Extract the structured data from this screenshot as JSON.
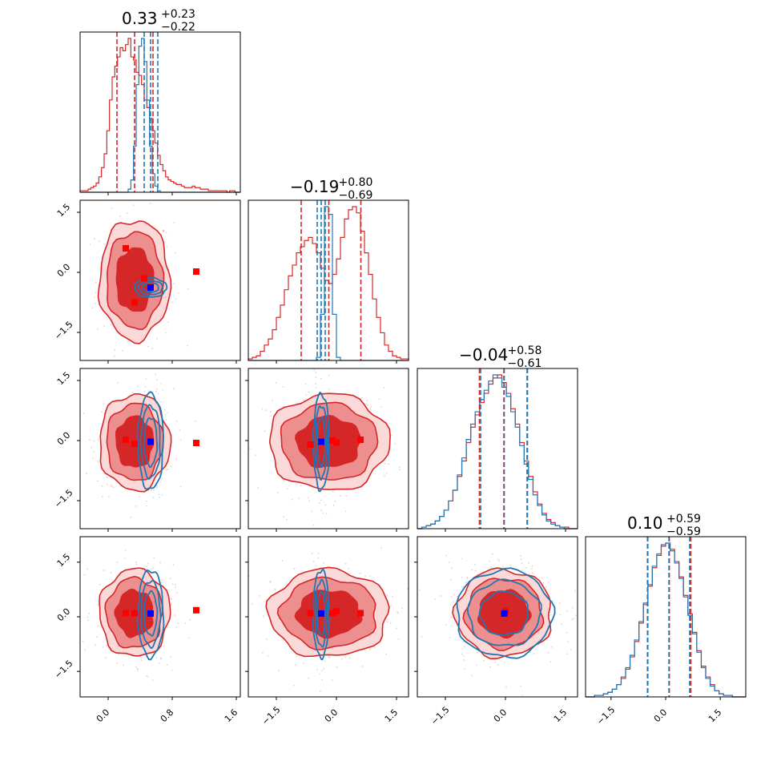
{
  "colors": {
    "primary": "#d62728",
    "secondary": "#1f77b4",
    "max_marker_primary": "#ff0000",
    "max_marker_secondary": "#0000ff"
  },
  "chart_data": {
    "type": "corner",
    "n_params": 4,
    "titles": [
      {
        "median": "0.33",
        "plus": "+0.23",
        "minus": "−0.22"
      },
      {
        "median": "−0.19",
        "plus": "+0.80",
        "minus": "−0.69"
      },
      {
        "median": "−0.04",
        "plus": "+0.58",
        "minus": "−0.61"
      },
      {
        "median": "0.10",
        "plus": "+0.59",
        "minus": "−0.59"
      }
    ],
    "ranges": [
      [
        -0.35,
        1.65
      ],
      [
        -2.2,
        1.8
      ],
      [
        -2.2,
        1.8
      ],
      [
        -2.2,
        2.2
      ]
    ],
    "ticks": [
      {
        "values": [
          0.0,
          0.8,
          1.6
        ],
        "labels": [
          "0.0",
          "0.8",
          "1.6"
        ]
      },
      {
        "values": [
          -1.5,
          0.0,
          1.5
        ],
        "labels": [
          "−1.5",
          "0.0",
          "1.5"
        ]
      },
      {
        "values": [
          -1.5,
          0.0,
          1.5
        ],
        "labels": [
          "−1.5",
          "0.0",
          "1.5"
        ]
      },
      {
        "values": [
          -1.5,
          0.0,
          1.5
        ],
        "labels": [
          "−1.5",
          "0.0",
          "1.5"
        ]
      }
    ],
    "quantiles": {
      "primary": [
        [
          0.11,
          0.33,
          0.56
        ],
        [
          -0.88,
          -0.19,
          0.61
        ],
        [
          -0.65,
          -0.04,
          0.54
        ],
        [
          -0.49,
          0.1,
          0.69
        ]
      ],
      "secondary": [
        [
          0.45,
          0.53,
          0.62
        ],
        [
          -0.48,
          -0.38,
          -0.28
        ],
        [
          -0.62,
          -0.03,
          0.55
        ],
        [
          -0.5,
          0.09,
          0.66
        ]
      ]
    },
    "histograms": [
      {
        "x_start": -0.35,
        "x_end": 1.65,
        "primary": [
          1,
          1,
          1,
          2,
          3,
          4,
          6,
          10,
          16,
          25,
          40,
          60,
          75,
          82,
          88,
          94,
          92,
          96,
          100,
          88,
          86,
          78,
          76,
          70,
          60,
          55,
          48,
          40,
          32,
          24,
          18,
          14,
          10,
          8,
          7,
          6,
          5,
          5,
          4,
          3,
          3,
          3,
          4,
          3,
          3,
          2,
          2,
          2,
          1,
          1,
          1,
          1,
          1,
          1,
          1,
          0,
          1,
          1,
          0,
          0
        ],
        "secondary": [
          0,
          0,
          0,
          0,
          0,
          0,
          0,
          0,
          0,
          0,
          0,
          0,
          0,
          0,
          0,
          0,
          0,
          0,
          2,
          8,
          30,
          70,
          95,
          100,
          85,
          60,
          30,
          12,
          4,
          1,
          0,
          0,
          0,
          0,
          0,
          0,
          0,
          0,
          0,
          0,
          0,
          0,
          0,
          0,
          0,
          0,
          0,
          0,
          0,
          0,
          0,
          0,
          0,
          0,
          0,
          0,
          0,
          0,
          0,
          0
        ]
      },
      {
        "x_start": -2.2,
        "x_end": 1.8,
        "primary": [
          1,
          2,
          3,
          6,
          10,
          14,
          20,
          28,
          36,
          46,
          55,
          62,
          70,
          74,
          78,
          80,
          76,
          70,
          60,
          52,
          50,
          56,
          66,
          80,
          92,
          98,
          100,
          96,
          84,
          70,
          56,
          40,
          28,
          18,
          10,
          6,
          3,
          2,
          1,
          1
        ],
        "secondary": [
          0,
          0,
          0,
          0,
          0,
          0,
          0,
          0,
          0,
          0,
          0,
          0,
          0,
          0,
          0,
          0,
          0,
          2,
          30,
          100,
          95,
          30,
          2,
          0,
          0,
          0,
          0,
          0,
          0,
          0,
          0,
          0,
          0,
          0,
          0,
          0,
          0,
          0,
          0,
          0
        ]
      },
      {
        "x_start": -2.2,
        "x_end": 1.8,
        "primary": [
          0,
          1,
          2,
          3,
          5,
          8,
          12,
          18,
          25,
          34,
          44,
          56,
          66,
          74,
          82,
          88,
          94,
          98,
          100,
          95,
          88,
          78,
          68,
          56,
          44,
          34,
          24,
          16,
          10,
          6,
          4,
          2,
          1,
          1,
          0,
          0
        ],
        "secondary": [
          0,
          1,
          2,
          3,
          5,
          8,
          12,
          18,
          25,
          35,
          46,
          58,
          68,
          76,
          84,
          90,
          96,
          100,
          98,
          92,
          86,
          76,
          66,
          54,
          42,
          32,
          22,
          15,
          9,
          5,
          3,
          2,
          1,
          0,
          0,
          0
        ]
      },
      {
        "x_start": -2.2,
        "x_end": 2.2,
        "primary": [
          0,
          0,
          1,
          1,
          2,
          3,
          5,
          8,
          12,
          18,
          26,
          36,
          48,
          60,
          72,
          84,
          92,
          98,
          100,
          96,
          88,
          78,
          66,
          54,
          42,
          30,
          20,
          13,
          8,
          4,
          2,
          1,
          1,
          0,
          0,
          0
        ],
        "secondary": [
          0,
          0,
          1,
          1,
          2,
          3,
          5,
          8,
          13,
          19,
          27,
          37,
          49,
          61,
          73,
          85,
          93,
          99,
          100,
          95,
          87,
          77,
          65,
          53,
          41,
          29,
          19,
          12,
          7,
          4,
          2,
          1,
          1,
          0,
          0,
          0
        ]
      }
    ],
    "pairs": [
      {
        "row": 1,
        "col": 0,
        "primary_center": [
          0.33,
          -0.19
        ],
        "primary_spread": [
          0.22,
          0.75
        ],
        "secondary_center": [
          0.53,
          -0.38
        ],
        "secondary_spread": [
          0.1,
          0.12
        ],
        "primary_max": [
          [
            0.22,
            0.6
          ],
          [
            0.45,
            -0.15
          ],
          [
            0.33,
            -0.75
          ],
          [
            1.1,
            0.02
          ]
        ],
        "secondary_max": [
          0.53,
          -0.38
        ]
      },
      {
        "row": 2,
        "col": 0,
        "primary_center": [
          0.33,
          -0.04
        ],
        "primary_spread": [
          0.22,
          0.6
        ],
        "secondary_center": [
          0.53,
          -0.03
        ],
        "secondary_spread": [
          0.08,
          0.6
        ],
        "primary_max": [
          [
            0.22,
            0.02
          ],
          [
            0.33,
            -0.08
          ],
          [
            1.1,
            -0.06
          ]
        ],
        "secondary_max": [
          0.53,
          -0.03
        ]
      },
      {
        "row": 2,
        "col": 1,
        "primary_center": [
          -0.19,
          -0.04
        ],
        "primary_spread": [
          0.75,
          0.6
        ],
        "secondary_center": [
          -0.38,
          -0.03
        ],
        "secondary_spread": [
          0.1,
          0.6
        ],
        "primary_max": [
          [
            -0.65,
            -0.1
          ],
          [
            -0.1,
            0.0
          ],
          [
            0.0,
            -0.05
          ],
          [
            0.6,
            0.02
          ]
        ],
        "secondary_max": [
          -0.38,
          -0.03
        ]
      },
      {
        "row": 3,
        "col": 0,
        "primary_center": [
          0.33,
          0.1
        ],
        "primary_spread": [
          0.22,
          0.6
        ],
        "secondary_center": [
          0.53,
          0.09
        ],
        "secondary_spread": [
          0.08,
          0.6
        ],
        "primary_max": [
          [
            0.22,
            0.1
          ],
          [
            0.33,
            0.1
          ],
          [
            1.1,
            0.18
          ]
        ],
        "secondary_max": [
          0.53,
          0.09
        ]
      },
      {
        "row": 3,
        "col": 1,
        "primary_center": [
          -0.19,
          0.1
        ],
        "primary_spread": [
          0.75,
          0.6
        ],
        "secondary_center": [
          -0.38,
          0.09
        ],
        "secondary_spread": [
          0.1,
          0.6
        ],
        "primary_max": [
          [
            -0.65,
            0.1
          ],
          [
            -0.1,
            0.1
          ],
          [
            0.0,
            0.15
          ],
          [
            0.6,
            0.1
          ]
        ],
        "secondary_max": [
          -0.38,
          0.09
        ]
      },
      {
        "row": 3,
        "col": 2,
        "primary_center": [
          -0.04,
          0.1
        ],
        "primary_spread": [
          0.6,
          0.6
        ],
        "secondary_center": [
          -0.03,
          0.09
        ],
        "secondary_spread": [
          0.6,
          0.6
        ],
        "primary_max": [
          [
            0.0,
            0.15
          ]
        ],
        "secondary_max": [
          -0.03,
          0.09
        ]
      }
    ]
  }
}
